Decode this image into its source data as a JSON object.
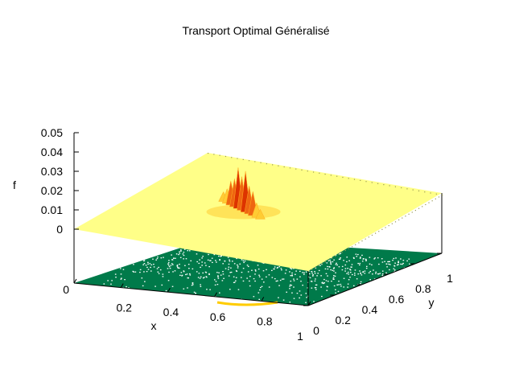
{
  "chart_data": {
    "type": "surface3d",
    "title": "Transport Optimal Généralisé",
    "xlabel": "x",
    "ylabel": "y",
    "zlabel": "f",
    "xlim": [
      0,
      1
    ],
    "ylim": [
      0,
      1
    ],
    "zlim": [
      0,
      0.05
    ],
    "x_ticks": [
      "0",
      "0.2",
      "0.4",
      "0.6",
      "0.8",
      "1"
    ],
    "y_ticks": [
      "0",
      "0.2",
      "0.4",
      "0.6",
      "0.8",
      "1"
    ],
    "z_ticks": [
      "0",
      "0.01",
      "0.02",
      "0.03",
      "0.04",
      "0.05"
    ],
    "surface": {
      "base_level": 0,
      "peak_center": {
        "x": 0.42,
        "y": 0.52
      },
      "peak_max": 0.021
    },
    "colors": {
      "surface_flat": "#ffff88",
      "peak_low": "#ffcc33",
      "peak_high": "#dd3300",
      "projection": "#007a4a",
      "projection_highlight": "#ffcc00"
    }
  }
}
